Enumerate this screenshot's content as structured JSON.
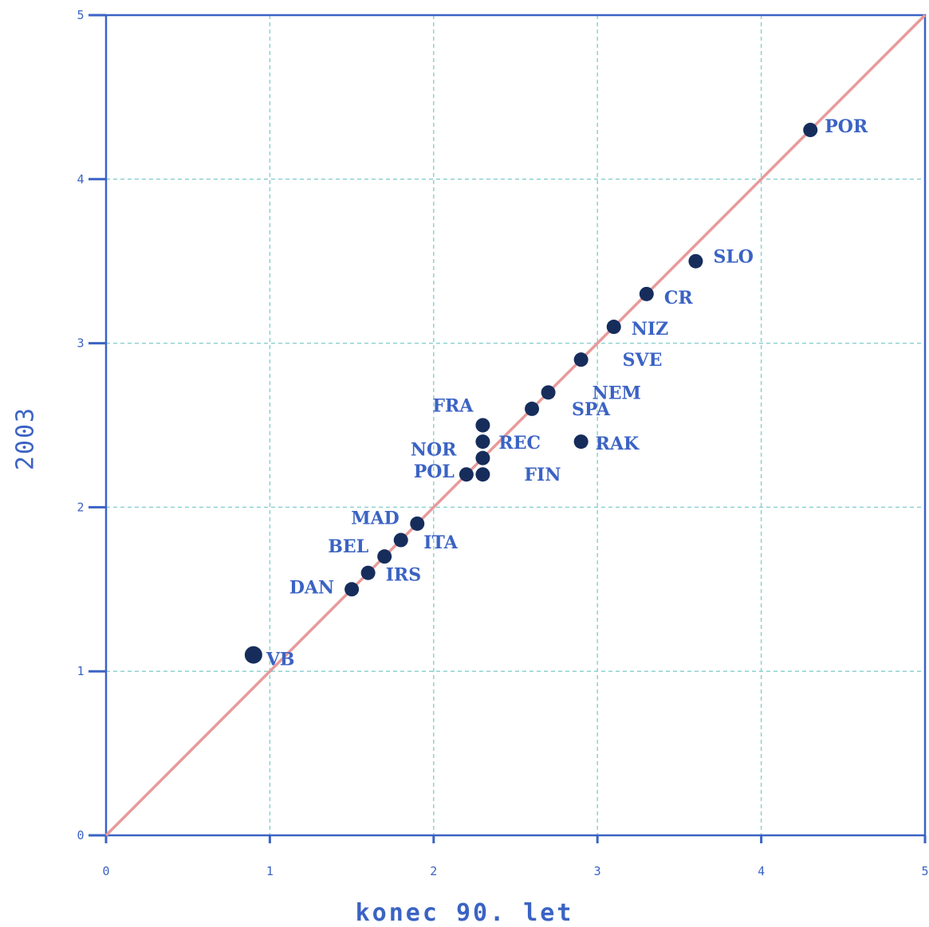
{
  "chart_data": {
    "type": "scatter",
    "xlabel": "konec 90. let",
    "ylabel": "2003",
    "xlim": [
      0,
      5
    ],
    "ylim": [
      0,
      5
    ],
    "x_ticks": [
      "0",
      "1",
      "2",
      "3",
      "4",
      "5"
    ],
    "y_ticks": [
      "0",
      "1",
      "2",
      "3",
      "4",
      "5"
    ],
    "grid": true,
    "reference_line": {
      "from": [
        0,
        0
      ],
      "to": [
        5,
        5
      ],
      "color": "#e89a9a"
    },
    "colors": {
      "axis": "#3b63c4",
      "grid": "#8fd1d1",
      "point": "#162d5c",
      "label": "#3b63c4"
    },
    "points": [
      {
        "label": "POR",
        "x": 4.3,
        "y": 4.3
      },
      {
        "label": "SLO",
        "x": 3.6,
        "y": 3.5
      },
      {
        "label": "CR",
        "x": 3.3,
        "y": 3.3
      },
      {
        "label": "NIZ",
        "x": 3.1,
        "y": 3.1
      },
      {
        "label": "SVE",
        "x": 2.9,
        "y": 2.9
      },
      {
        "label": "NEM",
        "x": 2.7,
        "y": 2.7
      },
      {
        "label": "SPA",
        "x": 2.6,
        "y": 2.6
      },
      {
        "label": "RAK",
        "x": 2.9,
        "y": 2.4
      },
      {
        "label": "FRA",
        "x": 2.3,
        "y": 2.5
      },
      {
        "label": "REC",
        "x": 2.3,
        "y": 2.4
      },
      {
        "label": "NOR",
        "x": 2.3,
        "y": 2.3
      },
      {
        "label": "FIN",
        "x": 2.3,
        "y": 2.2
      },
      {
        "label": "POL",
        "x": 2.2,
        "y": 2.2
      },
      {
        "label": "ITA",
        "x": 1.9,
        "y": 1.9
      },
      {
        "label": "MAD",
        "x": 1.8,
        "y": 1.8
      },
      {
        "label": "BEL",
        "x": 1.7,
        "y": 1.7
      },
      {
        "label": "IRS",
        "x": 1.6,
        "y": 1.6
      },
      {
        "label": "DAN",
        "x": 1.5,
        "y": 1.5
      },
      {
        "label": "VB",
        "x": 0.9,
        "y": 1.1
      }
    ]
  }
}
